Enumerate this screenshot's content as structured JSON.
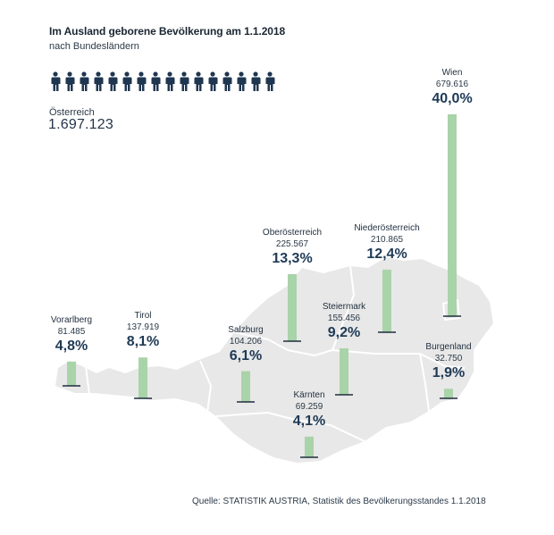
{
  "title": "Im Ausland geborene Bevölkerung am 1.1.2018",
  "subtitle": "nach Bundesländern",
  "total": {
    "label": "Österreich",
    "value": "1.697.123"
  },
  "source": "Quelle: STATISTIK AUSTRIA, Statistik des Bevölkerungsstandes 1.1.2018",
  "icon_count": 16,
  "colors": {
    "bar": "#a9d3a9",
    "map": "#e8e8e8",
    "border": "#ffffff",
    "text": "#1e3a55",
    "icon": "#1f3650"
  },
  "chart_data": {
    "type": "bar",
    "title": "Im Ausland geborene Bevölkerung am 1.1.2018",
    "subtitle": "nach Bundesländern",
    "unit": "Anteil in %",
    "categories": [
      "Vorarlberg",
      "Tirol",
      "Salzburg",
      "Oberösterreich",
      "Kärnten",
      "Steiermark",
      "Niederösterreich",
      "Wien",
      "Burgenland"
    ],
    "counts": [
      "81.485",
      "137.919",
      "104.206",
      "225.567",
      "69.259",
      "155.456",
      "210.865",
      "679.616",
      "32.750"
    ],
    "labels": [
      "4,8%",
      "8,1%",
      "6,1%",
      "13,3%",
      "4,1%",
      "9,2%",
      "12,4%",
      "40,0%",
      "1,9%"
    ],
    "values": [
      4.8,
      8.1,
      6.1,
      13.3,
      4.1,
      9.2,
      12.4,
      40.0,
      1.9
    ]
  }
}
